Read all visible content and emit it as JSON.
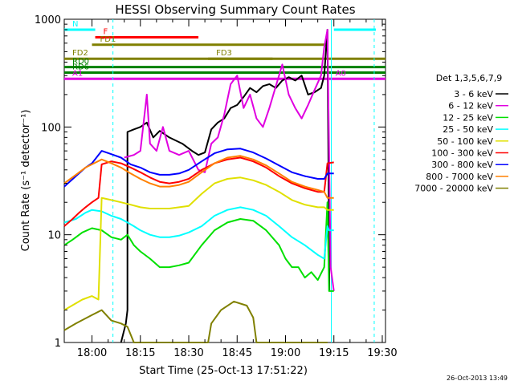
{
  "chart_data": {
    "type": "line",
    "title": "HESSI Observing Summary Count Rates",
    "xlabel": "Start Time (25-Oct-13 17:51:22)",
    "ylabel": "Count Rate (s⁻¹ detector⁻¹)",
    "x_ticks": [
      "18:00",
      "18:15",
      "18:30",
      "18:45",
      "19:00",
      "19:15",
      "19:30"
    ],
    "x_tick_minutes": [
      0,
      15,
      30,
      45,
      60,
      75,
      90
    ],
    "xlim_minutes_from_1800": [
      -8.6,
      91
    ],
    "y_scale": "log",
    "ylim": [
      1,
      1000
    ],
    "y_ticks": [
      {
        "value": 1,
        "label": "1"
      },
      {
        "value": 10,
        "label": "10"
      },
      {
        "value": 100,
        "label": "100"
      },
      {
        "value": 1000,
        "label": "1000"
      }
    ],
    "legend_title": "Det 1,3,5,6,7,9",
    "legend_position": "right",
    "series": [
      {
        "name": "3 - 6 keV",
        "color": "#000000",
        "points": [
          [
            9,
            1
          ],
          [
            10.5,
            1.5
          ],
          [
            11,
            2
          ],
          [
            11,
            90
          ],
          [
            13,
            95
          ],
          [
            15,
            100
          ],
          [
            17,
            110
          ],
          [
            19,
            80
          ],
          [
            21,
            92
          ],
          [
            24,
            80
          ],
          [
            28,
            70
          ],
          [
            31,
            60
          ],
          [
            33,
            55
          ],
          [
            35,
            58
          ],
          [
            37,
            95
          ],
          [
            39,
            110
          ],
          [
            41,
            120
          ],
          [
            43,
            150
          ],
          [
            45,
            160
          ],
          [
            47,
            190
          ],
          [
            49,
            230
          ],
          [
            51,
            210
          ],
          [
            53,
            240
          ],
          [
            55,
            250
          ],
          [
            57,
            230
          ],
          [
            59,
            270
          ],
          [
            61,
            290
          ],
          [
            63,
            270
          ],
          [
            65,
            300
          ],
          [
            67,
            200
          ],
          [
            69,
            210
          ],
          [
            71,
            230
          ],
          [
            72,
            300
          ],
          [
            73,
            800
          ],
          [
            73.6,
            3
          ]
        ]
      },
      {
        "name": "6 - 12 keV",
        "color": "#e000e0",
        "points": [
          [
            10,
            52
          ],
          [
            13,
            55
          ],
          [
            15,
            60
          ],
          [
            17,
            200
          ],
          [
            18,
            70
          ],
          [
            20,
            60
          ],
          [
            22,
            100
          ],
          [
            24,
            60
          ],
          [
            27,
            55
          ],
          [
            30,
            60
          ],
          [
            33,
            40
          ],
          [
            35,
            38
          ],
          [
            37,
            70
          ],
          [
            39,
            80
          ],
          [
            41,
            130
          ],
          [
            43,
            250
          ],
          [
            45,
            300
          ],
          [
            47,
            150
          ],
          [
            49,
            200
          ],
          [
            51,
            120
          ],
          [
            53,
            100
          ],
          [
            55,
            150
          ],
          [
            57,
            240
          ],
          [
            59,
            380
          ],
          [
            61,
            200
          ],
          [
            63,
            150
          ],
          [
            65,
            120
          ],
          [
            67,
            160
          ],
          [
            69,
            220
          ],
          [
            71,
            300
          ],
          [
            72,
            550
          ],
          [
            73,
            800
          ],
          [
            74,
            5
          ],
          [
            75,
            3
          ]
        ]
      },
      {
        "name": "12 - 25 keV",
        "color": "#00e000",
        "points": [
          [
            -8.6,
            8
          ],
          [
            -6,
            9
          ],
          [
            -3,
            10.5
          ],
          [
            0,
            11.5
          ],
          [
            3,
            11
          ],
          [
            6,
            9.5
          ],
          [
            9,
            9
          ],
          [
            11,
            10
          ],
          [
            13,
            8
          ],
          [
            15,
            7
          ],
          [
            18,
            6
          ],
          [
            21,
            5
          ],
          [
            24,
            5
          ],
          [
            27,
            5.2
          ],
          [
            30,
            5.5
          ],
          [
            34,
            8
          ],
          [
            38,
            11
          ],
          [
            42,
            13
          ],
          [
            46,
            14
          ],
          [
            50,
            13.5
          ],
          [
            54,
            11
          ],
          [
            58,
            8
          ],
          [
            60,
            6
          ],
          [
            62,
            5
          ],
          [
            64,
            5
          ],
          [
            66,
            4
          ],
          [
            68,
            4.5
          ],
          [
            70,
            3.8
          ],
          [
            72,
            5
          ],
          [
            73,
            20
          ],
          [
            73.5,
            3
          ],
          [
            75,
            3
          ]
        ]
      },
      {
        "name": "25 - 50 keV",
        "color": "#00ffff",
        "points": [
          [
            -8.6,
            13
          ],
          [
            -5,
            14
          ],
          [
            -2,
            16
          ],
          [
            0,
            17
          ],
          [
            3,
            16.5
          ],
          [
            6,
            15
          ],
          [
            9,
            14
          ],
          [
            11,
            13
          ],
          [
            13,
            12
          ],
          [
            15,
            11
          ],
          [
            18,
            10
          ],
          [
            21,
            9.5
          ],
          [
            24,
            9.5
          ],
          [
            27,
            9.8
          ],
          [
            30,
            10.5
          ],
          [
            34,
            12
          ],
          [
            38,
            15
          ],
          [
            42,
            17
          ],
          [
            46,
            18
          ],
          [
            50,
            17
          ],
          [
            54,
            15
          ],
          [
            58,
            12
          ],
          [
            62,
            9.5
          ],
          [
            66,
            8
          ],
          [
            70,
            6.5
          ],
          [
            72,
            6
          ],
          [
            73,
            12
          ],
          [
            73.5,
            11
          ],
          [
            75,
            11
          ]
        ]
      },
      {
        "name": "50 - 100 keV",
        "color": "#e0e000",
        "points": [
          [
            -8.6,
            2
          ],
          [
            -3,
            2.5
          ],
          [
            0,
            2.7
          ],
          [
            2,
            2.5
          ],
          [
            3,
            22
          ],
          [
            6,
            21
          ],
          [
            9,
            20
          ],
          [
            12,
            19
          ],
          [
            15,
            18
          ],
          [
            18,
            17.5
          ],
          [
            21,
            17.5
          ],
          [
            24,
            17.5
          ],
          [
            27,
            18
          ],
          [
            30,
            18.5
          ],
          [
            34,
            24
          ],
          [
            38,
            30
          ],
          [
            42,
            33
          ],
          [
            46,
            34
          ],
          [
            50,
            32
          ],
          [
            54,
            29
          ],
          [
            58,
            25
          ],
          [
            62,
            21
          ],
          [
            66,
            19
          ],
          [
            70,
            18
          ],
          [
            72,
            18
          ],
          [
            73,
            17
          ],
          [
            75,
            17
          ]
        ]
      },
      {
        "name": "100 - 300 keV",
        "color": "#ff0000",
        "points": [
          [
            -8.6,
            12
          ],
          [
            -6,
            14
          ],
          [
            -4,
            16
          ],
          [
            -2,
            18
          ],
          [
            0,
            20
          ],
          [
            2,
            22
          ],
          [
            3,
            45
          ],
          [
            6,
            48
          ],
          [
            9,
            46
          ],
          [
            12,
            42
          ],
          [
            15,
            38
          ],
          [
            18,
            34
          ],
          [
            21,
            31
          ],
          [
            24,
            30
          ],
          [
            27,
            31
          ],
          [
            30,
            33
          ],
          [
            34,
            40
          ],
          [
            38,
            46
          ],
          [
            42,
            50
          ],
          [
            46,
            52
          ],
          [
            50,
            48
          ],
          [
            54,
            42
          ],
          [
            58,
            35
          ],
          [
            62,
            30
          ],
          [
            66,
            27
          ],
          [
            70,
            25
          ],
          [
            72,
            25
          ],
          [
            73,
            46
          ],
          [
            75,
            47
          ]
        ]
      },
      {
        "name": "300 - 800 keV",
        "color": "#0000ff",
        "points": [
          [
            -8.6,
            28
          ],
          [
            -5,
            35
          ],
          [
            -2,
            42
          ],
          [
            0,
            46
          ],
          [
            3,
            60
          ],
          [
            6,
            56
          ],
          [
            9,
            52
          ],
          [
            12,
            45
          ],
          [
            15,
            42
          ],
          [
            18,
            38
          ],
          [
            21,
            36
          ],
          [
            24,
            36
          ],
          [
            27,
            37
          ],
          [
            30,
            40
          ],
          [
            34,
            48
          ],
          [
            38,
            57
          ],
          [
            42,
            62
          ],
          [
            46,
            63
          ],
          [
            50,
            58
          ],
          [
            54,
            51
          ],
          [
            58,
            44
          ],
          [
            62,
            38
          ],
          [
            66,
            35
          ],
          [
            70,
            33
          ],
          [
            72,
            33
          ],
          [
            73,
            37
          ],
          [
            75,
            37
          ]
        ]
      },
      {
        "name": "800 - 7000 keV",
        "color": "#ff8000",
        "points": [
          [
            -8.6,
            30
          ],
          [
            -5,
            36
          ],
          [
            -2,
            42
          ],
          [
            0,
            45
          ],
          [
            3,
            50
          ],
          [
            6,
            46
          ],
          [
            9,
            42
          ],
          [
            12,
            37
          ],
          [
            15,
            33
          ],
          [
            18,
            30
          ],
          [
            21,
            28
          ],
          [
            24,
            28
          ],
          [
            27,
            29
          ],
          [
            30,
            31
          ],
          [
            34,
            38
          ],
          [
            38,
            46
          ],
          [
            42,
            52
          ],
          [
            46,
            54
          ],
          [
            50,
            50
          ],
          [
            54,
            44
          ],
          [
            58,
            37
          ],
          [
            62,
            31
          ],
          [
            66,
            28
          ],
          [
            70,
            26
          ],
          [
            72,
            25
          ],
          [
            73,
            22
          ],
          [
            75,
            22
          ]
        ]
      },
      {
        "name": "7000 - 20000 keV",
        "color": "#808000",
        "points": [
          [
            -8.6,
            1.3
          ],
          [
            -5,
            1.5
          ],
          [
            0,
            1.8
          ],
          [
            3,
            2
          ],
          [
            6,
            1.6
          ],
          [
            9,
            1.5
          ],
          [
            11,
            1.4
          ],
          [
            13,
            1
          ],
          [
            36,
            1
          ],
          [
            37,
            1.5
          ],
          [
            40,
            2
          ],
          [
            44,
            2.4
          ],
          [
            48,
            2.2
          ],
          [
            50,
            1.7
          ],
          [
            51,
            1
          ],
          [
            73,
            1
          ]
        ]
      }
    ],
    "annotations": [
      {
        "label": "N",
        "color": "#00ffff",
        "type": "bar",
        "x_start": -8.6,
        "x_end": 1,
        "y": 800
      },
      {
        "label": "",
        "color": "#00ffff",
        "type": "bar",
        "x_start": 75,
        "x_end": 88,
        "y": 800
      },
      {
        "label": "F",
        "color": "#ff0000",
        "type": "bar",
        "x_start": 1,
        "x_end": 33,
        "y": 680
      },
      {
        "label": "FD1",
        "color": "#808000",
        "type": "bar",
        "x_start": 0,
        "x_end": 73,
        "y": 580
      },
      {
        "label": "FD2",
        "color": "#808000",
        "type": "bar",
        "x_start": -8.6,
        "x_end": 91,
        "y": 430
      },
      {
        "label": "FD3",
        "color": "#808000",
        "type": "bar",
        "x_start": 36,
        "x_end": 56,
        "y": 430
      },
      {
        "label": "RD0",
        "color": "#008000",
        "type": "bar",
        "x_start": -8.6,
        "x_end": 91,
        "y": 360
      },
      {
        "label": "RD6",
        "color": "#008000",
        "type": "bar",
        "x_start": -8.6,
        "x_end": 91,
        "y": 320
      },
      {
        "label": "A1",
        "color": "#e000e0",
        "type": "bar",
        "x_start": -8.6,
        "x_end": 91,
        "y": 280
      },
      {
        "label": "A0",
        "color": "#e000e0",
        "type": "marker",
        "x_start": 73,
        "x_end": 76,
        "y": 280
      }
    ],
    "vertical_markers": [
      {
        "x": 6.5,
        "color": "#00ffff",
        "style": "dashed"
      },
      {
        "x": 74.2,
        "color": "#00ffff",
        "style": "solid"
      },
      {
        "x": 87.5,
        "color": "#00ffff",
        "style": "dashed"
      }
    ]
  },
  "footer": {
    "timestamp": "26-Oct-2013 13:49"
  }
}
